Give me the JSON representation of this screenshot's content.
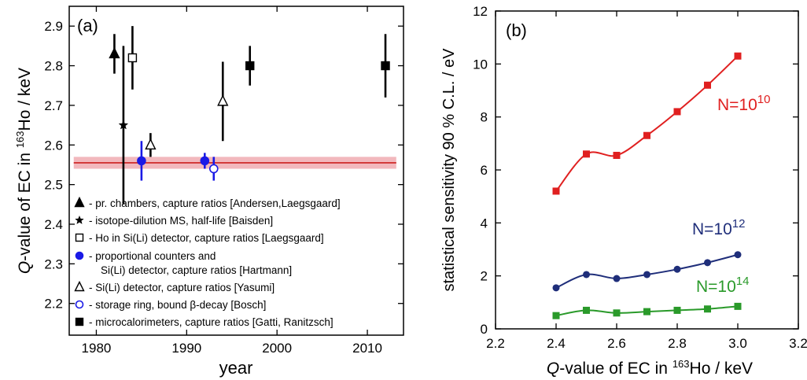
{
  "chart_data": [
    {
      "type": "scatter",
      "panel_label": "(a)",
      "xlabel": "year",
      "ylabel": "Q-value of EC in ¹⁶³Ho / keV",
      "xlim": [
        1977,
        2014
      ],
      "ylim": [
        2.12,
        2.95
      ],
      "xticks": [
        1980,
        1990,
        2000,
        2010
      ],
      "yticks": [
        2.2,
        2.3,
        2.4,
        2.5,
        2.6,
        2.7,
        2.8,
        2.9
      ],
      "reference_band": {
        "center": 2.555,
        "low": 2.54,
        "high": 2.57,
        "color": "#cc1f1f",
        "band_color": "#f2b8bd"
      },
      "series": [
        {
          "name": "- pr. chambers, capture ratios [Andersen,Laegsgaard]",
          "marker": "triangle-filled",
          "color": "#000000",
          "points": [
            {
              "x": 1982,
              "y": 2.83,
              "err": 0.05
            }
          ]
        },
        {
          "name": "- isotope-dilution MS, half-life [Baisden]",
          "marker": "star",
          "color": "#000000",
          "points": [
            {
              "x": 1983,
              "y": 2.65,
              "err": 0.2
            }
          ]
        },
        {
          "name": "- Ho in Si(Li) detector, capture ratios [Laegsgaard]",
          "marker": "square-open",
          "color": "#000000",
          "points": [
            {
              "x": 1984,
              "y": 2.82,
              "err": 0.08
            }
          ]
        },
        {
          "name": "- proportional counters and",
          "name_line2": "Si(Li) detector, capture ratios [Hartmann]",
          "marker": "circle-filled",
          "color": "#1a1ae6",
          "points": [
            {
              "x": 1985,
              "y": 2.56,
              "err": 0.05
            },
            {
              "x": 1992,
              "y": 2.56,
              "err": 0.02
            }
          ]
        },
        {
          "name": "- Si(Li) detector, capture ratios [Yasumi]",
          "marker": "triangle-open",
          "color": "#000000",
          "points": [
            {
              "x": 1986,
              "y": 2.6,
              "err": 0.03
            },
            {
              "x": 1994,
              "y": 2.71,
              "err": 0.1
            }
          ]
        },
        {
          "name": "- storage ring, bound β-decay [Bosch]",
          "marker": "circle-open",
          "color": "#1a1ae6",
          "points": [
            {
              "x": 1993,
              "y": 2.54,
              "err": 0.03
            }
          ]
        },
        {
          "name": "- microcalorimeters, capture ratios [Gatti, Ranitzsch]",
          "marker": "square-filled",
          "color": "#000000",
          "points": [
            {
              "x": 1997,
              "y": 2.8,
              "err": 0.05
            },
            {
              "x": 2012,
              "y": 2.8,
              "err": 0.08
            }
          ]
        }
      ]
    },
    {
      "type": "line",
      "panel_label": "(b)",
      "xlabel": "Q-value of EC in ¹⁶³Ho / keV",
      "ylabel": "statistical sensitivity 90 % C.L. / eV",
      "xlim": [
        2.2,
        3.2
      ],
      "ylim": [
        0,
        12
      ],
      "xticks": [
        2.2,
        2.4,
        2.6,
        2.8,
        3.0,
        3.2
      ],
      "yticks": [
        0,
        2,
        4,
        6,
        8,
        10,
        12
      ],
      "x": [
        2.4,
        2.5,
        2.6,
        2.7,
        2.8,
        2.9,
        3.0
      ],
      "series": [
        {
          "name": "N=10",
          "exponent": "10",
          "color": "#e02020",
          "values": [
            5.2,
            6.6,
            6.55,
            7.3,
            8.2,
            9.2,
            10.3
          ]
        },
        {
          "name": "N=10",
          "exponent": "12",
          "color": "#1f2e7a",
          "values": [
            1.55,
            2.05,
            1.9,
            2.05,
            2.25,
            2.5,
            2.8
          ]
        },
        {
          "name": "N=10",
          "exponent": "14",
          "color": "#2a9a2a",
          "values": [
            0.5,
            0.7,
            0.6,
            0.65,
            0.7,
            0.75,
            0.85
          ]
        }
      ]
    }
  ]
}
